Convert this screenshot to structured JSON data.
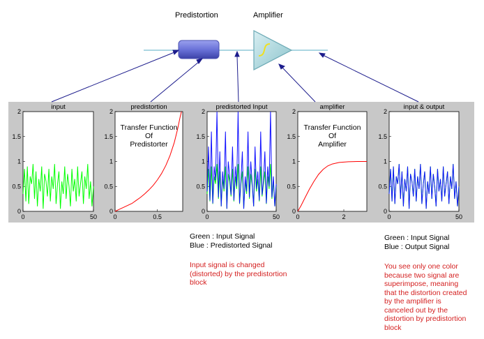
{
  "block_labels": {
    "predistortion": "Predistortion",
    "amplifier": "Amplifier"
  },
  "colors": {
    "panel_bg": "#c8c8c8",
    "green": "#00ff00",
    "blue": "#1010ff",
    "red": "#ff0000",
    "line": "#8fc8d8",
    "block_fill": "#6a72d8",
    "tri_fill": "#a8d4dc",
    "arrow": "#1c1c8c",
    "note_red": "#d42020"
  },
  "plots": [
    {
      "key": "input",
      "title": "input",
      "xticks": [
        "0",
        "50"
      ],
      "yticks": [
        "0",
        "0.5",
        "1",
        "1.5",
        "2"
      ]
    },
    {
      "key": "predistortion",
      "title": "predistortion",
      "xticks": [
        "0",
        "0.5"
      ],
      "yticks": [
        "0",
        "0.5",
        "1",
        "1.5",
        "2"
      ],
      "annotation": [
        "Transfer Function",
        "Of",
        "Predistorter"
      ]
    },
    {
      "key": "predistorted",
      "title": "predistorted Input",
      "xticks": [
        "0",
        "50"
      ],
      "yticks": [
        "0",
        "0.5",
        "1",
        "1.5",
        "2"
      ]
    },
    {
      "key": "amplifier",
      "title": "amplifier",
      "xticks": [
        "0",
        "2"
      ],
      "yticks": [
        "0",
        "0.5",
        "1",
        "1.5",
        "2"
      ],
      "annotation": [
        "Transfer Function",
        "Of",
        "Amplifier"
      ]
    },
    {
      "key": "inout",
      "title": "input & output",
      "xticks": [
        "0",
        "50"
      ],
      "yticks": [
        "0",
        "0.5",
        "1",
        "1.5",
        "2"
      ]
    }
  ],
  "notes": {
    "middle_legend": [
      "Green : Input Signal",
      "Blue : Predistorted Signal"
    ],
    "middle_comment": [
      "Input signal is changed",
      "(distorted) by the predistortion",
      "block"
    ],
    "right_legend": [
      "Green : Input Signal",
      "Blue : Output Signal"
    ],
    "right_comment": [
      "You see only one color",
      "because two signal are",
      "superimpose, meaning",
      "that the distortion created",
      "by the amplifier is",
      "canceled out by the",
      "distortion by predistortion",
      "block"
    ]
  },
  "chart_data": [
    {
      "type": "line",
      "title": "input",
      "xlim": [
        0,
        50
      ],
      "ylim": [
        0,
        2
      ],
      "series": [
        {
          "name": "Input Signal",
          "color": "green",
          "y": [
            0.35,
            0.85,
            0.2,
            0.9,
            0.15,
            0.7,
            0.55,
            0.95,
            0.25,
            0.8,
            0.1,
            0.65,
            0.4,
            0.9,
            0.05,
            0.75,
            0.6,
            0.3,
            0.85,
            0.2,
            0.7,
            0.45,
            0.95,
            0.15,
            0.55,
            0.8,
            0.05,
            0.6,
            0.35,
            0.9,
            0.25,
            0.75,
            0.5,
            0.1,
            0.85,
            0.4,
            0.65,
            0.2,
            0.9,
            0.3,
            0.55,
            0.8,
            0.15,
            0.7,
            0.45,
            0.95,
            0.25,
            0.6,
            0.1,
            0.5
          ]
        }
      ]
    },
    {
      "type": "line",
      "title": "predistortion",
      "xlim": [
        0,
        0.8
      ],
      "ylim": [
        0,
        2
      ],
      "series": [
        {
          "name": "Transfer Function Of Predistorter",
          "color": "red",
          "points": [
            [
              0,
              0
            ],
            [
              0.05,
              0.04
            ],
            [
              0.1,
              0.08
            ],
            [
              0.15,
              0.12
            ],
            [
              0.2,
              0.16
            ],
            [
              0.25,
              0.22
            ],
            [
              0.3,
              0.28
            ],
            [
              0.35,
              0.35
            ],
            [
              0.4,
              0.43
            ],
            [
              0.45,
              0.52
            ],
            [
              0.5,
              0.63
            ],
            [
              0.55,
              0.76
            ],
            [
              0.6,
              0.92
            ],
            [
              0.65,
              1.12
            ],
            [
              0.7,
              1.38
            ],
            [
              0.74,
              1.65
            ],
            [
              0.77,
              1.9
            ],
            [
              0.785,
              2.0
            ]
          ]
        }
      ]
    },
    {
      "type": "line",
      "title": "predistorted Input",
      "xlim": [
        0,
        50
      ],
      "ylim": [
        0,
        2
      ],
      "series": [
        {
          "name": "Input Signal",
          "color": "green",
          "y": [
            0.35,
            0.85,
            0.2,
            0.9,
            0.15,
            0.7,
            0.55,
            0.95,
            0.25,
            0.8,
            0.1,
            0.65,
            0.4,
            0.9,
            0.05,
            0.75,
            0.6,
            0.3,
            0.85,
            0.2,
            0.7,
            0.45,
            0.95,
            0.15,
            0.55,
            0.8,
            0.05,
            0.6,
            0.35,
            0.9,
            0.25,
            0.75,
            0.5,
            0.1,
            0.85,
            0.4,
            0.65,
            0.2,
            0.9,
            0.3,
            0.55,
            0.8,
            0.15,
            0.7,
            0.45,
            0.95,
            0.25,
            0.6,
            0.1,
            0.5
          ]
        },
        {
          "name": "Predistorted Signal",
          "color": "blue",
          "y": [
            0.4,
            1.3,
            0.22,
            1.6,
            0.16,
            0.9,
            0.62,
            2.0,
            0.28,
            1.2,
            0.1,
            0.8,
            0.45,
            1.6,
            0.05,
            1.0,
            0.7,
            0.33,
            1.3,
            0.22,
            0.9,
            0.5,
            2.0,
            0.16,
            0.62,
            1.2,
            0.05,
            0.7,
            0.4,
            1.6,
            0.28,
            1.0,
            0.55,
            0.1,
            1.3,
            0.45,
            0.8,
            0.22,
            1.6,
            0.33,
            0.62,
            1.2,
            0.16,
            0.9,
            0.5,
            2.0,
            0.28,
            0.7,
            0.1,
            0.55
          ]
        }
      ]
    },
    {
      "type": "line",
      "title": "amplifier",
      "xlim": [
        0,
        3
      ],
      "ylim": [
        0,
        2
      ],
      "series": [
        {
          "name": "Transfer Function Of Amplifier",
          "color": "red",
          "points": [
            [
              0,
              0
            ],
            [
              0.15,
              0.12
            ],
            [
              0.3,
              0.26
            ],
            [
              0.5,
              0.44
            ],
            [
              0.7,
              0.6
            ],
            [
              0.9,
              0.74
            ],
            [
              1.1,
              0.84
            ],
            [
              1.3,
              0.91
            ],
            [
              1.5,
              0.95
            ],
            [
              1.8,
              0.98
            ],
            [
              2.2,
              0.995
            ],
            [
              2.6,
              1.0
            ],
            [
              3,
              1.0
            ]
          ]
        }
      ]
    },
    {
      "type": "line",
      "title": "input & output",
      "xlim": [
        0,
        50
      ],
      "ylim": [
        0,
        2
      ],
      "series": [
        {
          "name": "Input Signal",
          "color": "green",
          "y": [
            0.35,
            0.85,
            0.2,
            0.9,
            0.15,
            0.7,
            0.55,
            0.95,
            0.25,
            0.8,
            0.1,
            0.65,
            0.4,
            0.9,
            0.05,
            0.75,
            0.6,
            0.3,
            0.85,
            0.2,
            0.7,
            0.45,
            0.95,
            0.15,
            0.55,
            0.8,
            0.05,
            0.6,
            0.35,
            0.9,
            0.25,
            0.75,
            0.5,
            0.1,
            0.85,
            0.4,
            0.65,
            0.2,
            0.9,
            0.3,
            0.55,
            0.8,
            0.15,
            0.7,
            0.45,
            0.95,
            0.25,
            0.6,
            0.1,
            0.5
          ]
        },
        {
          "name": "Output Signal",
          "color": "blue",
          "y": [
            0.35,
            0.85,
            0.2,
            0.9,
            0.15,
            0.7,
            0.55,
            0.95,
            0.25,
            0.8,
            0.1,
            0.65,
            0.4,
            0.9,
            0.05,
            0.75,
            0.6,
            0.3,
            0.85,
            0.2,
            0.7,
            0.45,
            0.95,
            0.15,
            0.55,
            0.8,
            0.05,
            0.6,
            0.35,
            0.9,
            0.25,
            0.75,
            0.5,
            0.1,
            0.85,
            0.4,
            0.65,
            0.2,
            0.9,
            0.3,
            0.55,
            0.8,
            0.15,
            0.7,
            0.45,
            0.95,
            0.25,
            0.6,
            0.1,
            0.5
          ]
        }
      ]
    }
  ]
}
